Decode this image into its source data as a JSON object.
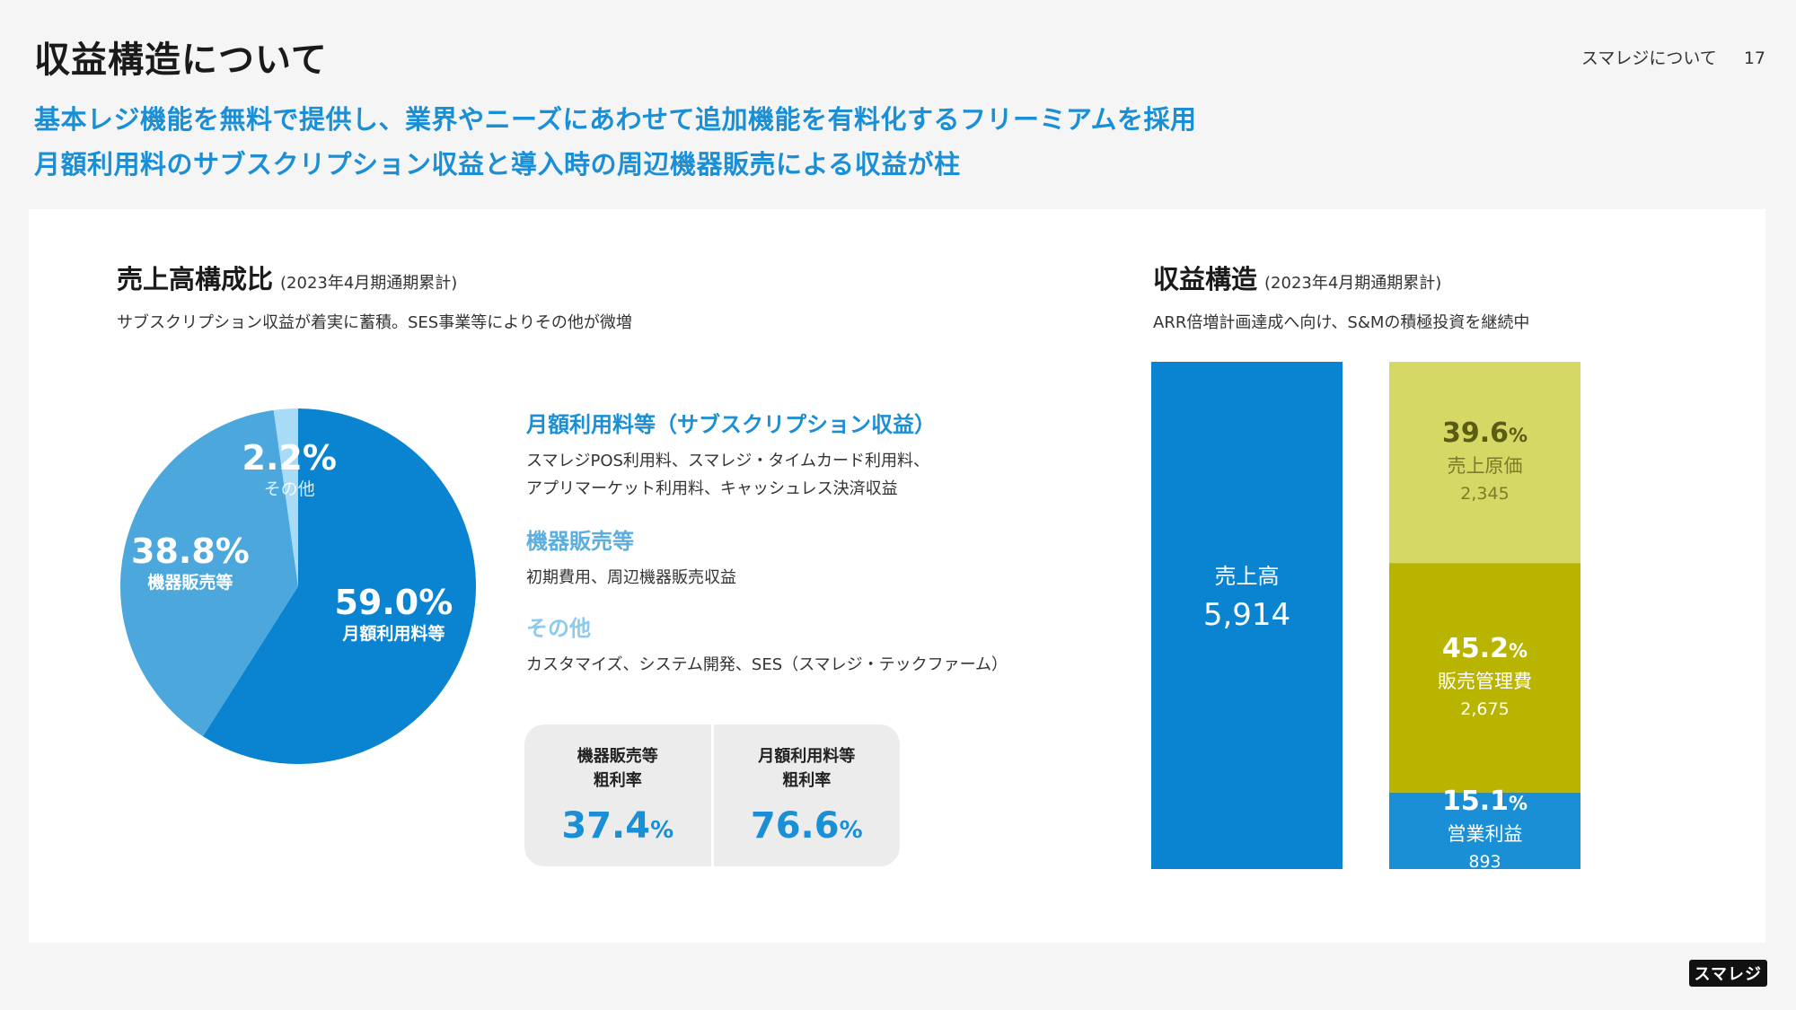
{
  "header": {
    "title": "収益構造について",
    "section_name": "スマレジについて",
    "page_number": "17"
  },
  "lead": {
    "line1": "基本レジ機能を無料で提供し、業界やニーズにあわせて追加機能を有料化するフリーミアムを採用",
    "line2": "月額利用料のサブスクリプション収益と導入時の周辺機器販売による収益が柱"
  },
  "sales_section": {
    "title": "売上高構成比",
    "period": "(2023年4月期通期累計)",
    "description": "サブスクリプション収益が着実に蓄積。SES事業等によりその他が微増"
  },
  "structure_section": {
    "title": "収益構造",
    "period": "(2023年4月期通期累計)",
    "description": "ARR倍増計画達成へ向け、S&Mの積極投資を継続中"
  },
  "legend": [
    {
      "title": "月額利用料等（サブスクリプション収益）",
      "lines": [
        "スマレジPOS利用料、スマレジ・タイムカード利用料、",
        "アプリマーケット利用料、キャッシュレス決済収益"
      ],
      "color": "#1a8fd6"
    },
    {
      "title": "機器販売等",
      "lines": [
        "初期費用、周辺機器販売収益"
      ],
      "color": "#5aaee0"
    },
    {
      "title": "その他",
      "lines": [
        "カスタマイズ、システム開発、SES（スマレジ・テックファーム）"
      ],
      "color": "#8ccbee"
    }
  ],
  "gross_margin": [
    {
      "label": "機器販売等\n粗利率",
      "value": "37.4",
      "unit": "%"
    },
    {
      "label": "月額利用料等\n粗利率",
      "value": "76.6",
      "unit": "%"
    }
  ],
  "logo_text": "スマレジ",
  "chart_data": [
    {
      "type": "pie",
      "slices": [
        {
          "label": "月額利用料等",
          "value": 59.0,
          "display": "59.0%",
          "color": "#0a84d0"
        },
        {
          "label": "機器販売等",
          "value": 38.8,
          "display": "38.8%",
          "color": "#4ca8dc"
        },
        {
          "label": "その他",
          "value": 2.2,
          "display": "2.2%",
          "color": "#a8dcf6"
        }
      ]
    },
    {
      "type": "bar",
      "stacked": true,
      "unit_label": "%",
      "total": {
        "label": "売上高",
        "value": 5914,
        "display": "5,914",
        "color": "#0a84d0"
      },
      "segments": [
        {
          "label": "営業利益",
          "value": 893,
          "display": "893",
          "percent": "15.1",
          "color": "#1a8fd6",
          "text_color": "#ffffff"
        },
        {
          "label": "販売管理費",
          "value": 2675,
          "display": "2,675",
          "percent": "45.2",
          "color": "#b8b400",
          "text_color": "#ffffff"
        },
        {
          "label": "売上原価",
          "value": 2345,
          "display": "2,345",
          "percent": "39.6",
          "color": "#d6d866",
          "text_color": "#5a5c14"
        }
      ]
    }
  ]
}
